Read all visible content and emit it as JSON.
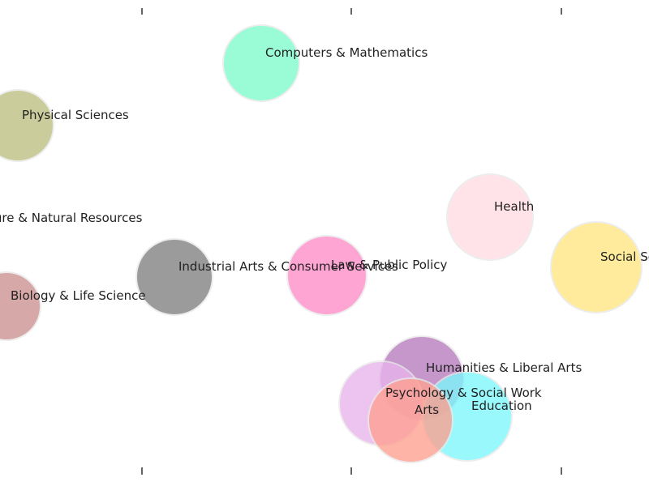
{
  "chart_data": {
    "type": "scatter",
    "title": "",
    "xlabel": "",
    "ylabel": "",
    "grid": false,
    "xlim": [
      0,
      800
    ],
    "ylim": [
      0,
      600
    ],
    "x_ticks": [
      175,
      433,
      692
    ],
    "series": [
      {
        "label": "Computers & Mathematics",
        "x": 322,
        "y": 522,
        "size": 47,
        "color": "#7dfccb"
      },
      {
        "label": "Physical Sciences",
        "x": 22,
        "y": 445,
        "size": 44,
        "color": "#bcbf7f"
      },
      {
        "label": "Agriculture & Natural Resources",
        "x": -70,
        "y": 318,
        "size": 0,
        "color": "#ffffff"
      },
      {
        "label": "Health",
        "x": 604,
        "y": 332,
        "size": 53,
        "color": "#ffdce4"
      },
      {
        "label": "Social Science",
        "x": 735,
        "y": 270,
        "size": 56,
        "color": "#ffe680"
      },
      {
        "label": "Industrial Arts & Consumer Services",
        "x": 215,
        "y": 258,
        "size": 47,
        "color": "#808080"
      },
      {
        "label": "Law & Public Policy",
        "x": 403,
        "y": 260,
        "size": 49,
        "color": "#ff8cc8"
      },
      {
        "label": "Biology & Life Science",
        "x": 8,
        "y": 222,
        "size": 42,
        "color": "#cd9090"
      },
      {
        "label": "Humanities & Liberal Arts",
        "x": 520,
        "y": 133,
        "size": 52,
        "color": "#b57bbd"
      },
      {
        "label": "Psychology & Social Work",
        "x": 470,
        "y": 102,
        "size": 52,
        "color": "#e8b4ec"
      },
      {
        "label": "Education",
        "x": 576,
        "y": 86,
        "size": 55,
        "color": "#7df7fb"
      },
      {
        "label": "Arts",
        "x": 506,
        "y": 81,
        "size": 52,
        "color": "#ffa090"
      }
    ]
  }
}
